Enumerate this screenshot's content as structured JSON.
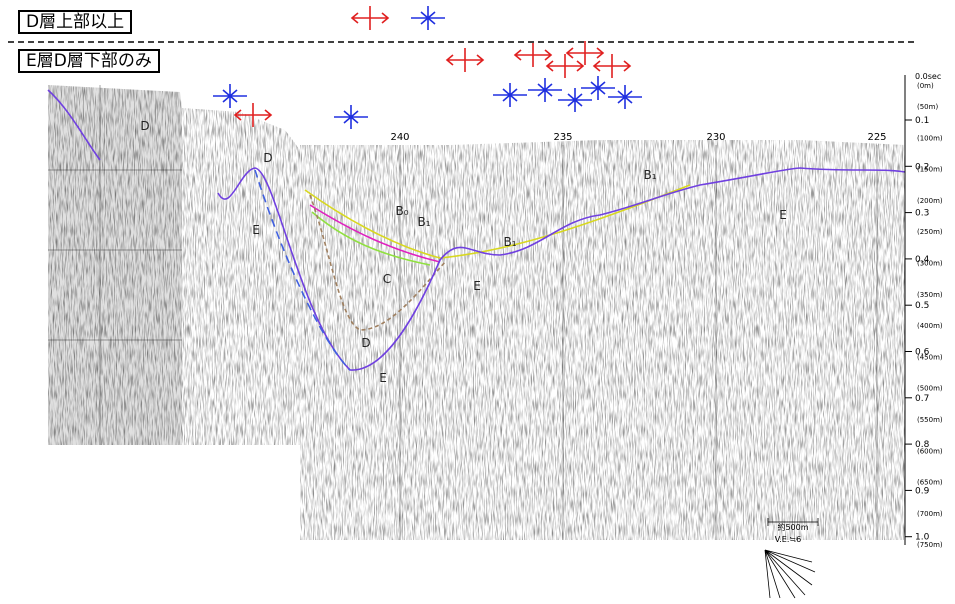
{
  "header": {
    "upper_label": "D層上部以上",
    "lower_label": "E層D層下部のみ"
  },
  "profile": {
    "layer_labels": [
      "D",
      "D",
      "E",
      "B₀",
      "B₁",
      "C",
      "E",
      "B₁",
      "B₁",
      "E",
      "D",
      "E"
    ],
    "distance_labels": [
      "240",
      "235",
      "230",
      "225"
    ],
    "time_top": "0.0sec",
    "depth_top": "(0m)",
    "time_ticks": [
      "0.1",
      "0.2",
      "0.3",
      "0.4",
      "0.5",
      "0.6",
      "0.7",
      "0.8",
      "0.9",
      "1.0"
    ],
    "depth_ticks": [
      "(50m)",
      "(100m)",
      "(150m)",
      "(200m)",
      "(250m)",
      "(300m)",
      "(350m)",
      "(400m)",
      "(450m)",
      "(500m)",
      "(550m)",
      "(600m)",
      "(650m)",
      "(700m)",
      "(750m)"
    ],
    "scale_label": "約500m",
    "ve_label": "V.E.≒6"
  }
}
